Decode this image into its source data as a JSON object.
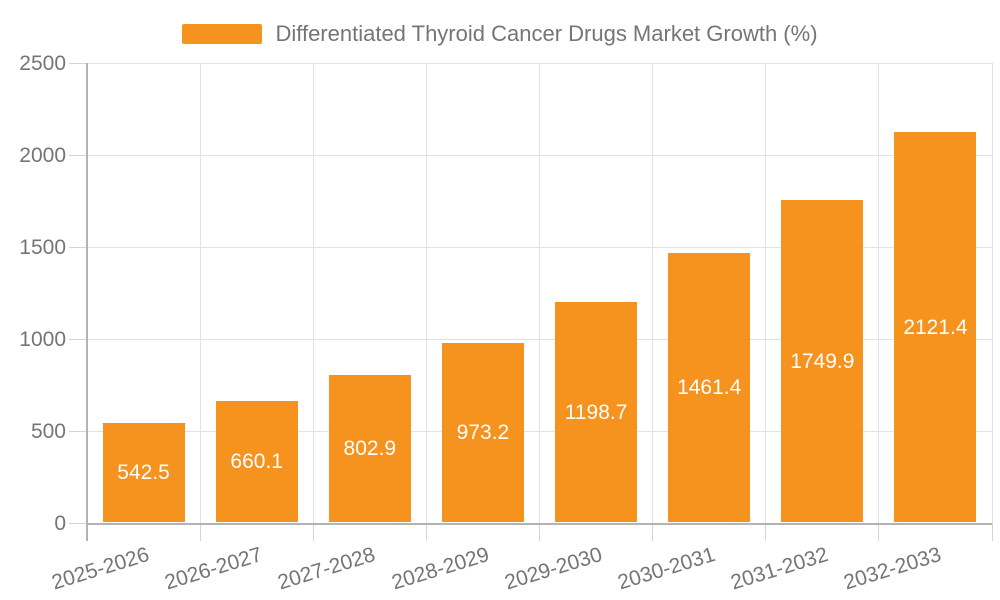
{
  "chart_data": {
    "type": "bar",
    "legend": "Differentiated Thyroid Cancer Drugs Market Growth (%)",
    "legend_position": "top",
    "categories": [
      "2025-2026",
      "2026-2027",
      "2027-2028",
      "2028-2029",
      "2029-2030",
      "2030-2031",
      "2031-2032",
      "2032-2033"
    ],
    "values": [
      542.5,
      660.1,
      802.9,
      973.2,
      1198.7,
      1461.4,
      1749.9,
      2121.4
    ],
    "value_labels": [
      "542.5",
      "660.1",
      "802.9",
      "973.2",
      "1198.7",
      "1461.4",
      "1749.9",
      "2121.4"
    ],
    "xlabel": "",
    "ylabel": "",
    "ylim": [
      0,
      2500
    ],
    "yticks": [
      0,
      500,
      1000,
      1500,
      2000,
      2500
    ],
    "grid": true,
    "colors": {
      "bar": "#f6921e",
      "value_label": "#ffffff",
      "axis_text": "#757575",
      "gridline": "#e2e2e2",
      "axis_line": "#b3b3b3",
      "background": "#ffffff"
    }
  }
}
